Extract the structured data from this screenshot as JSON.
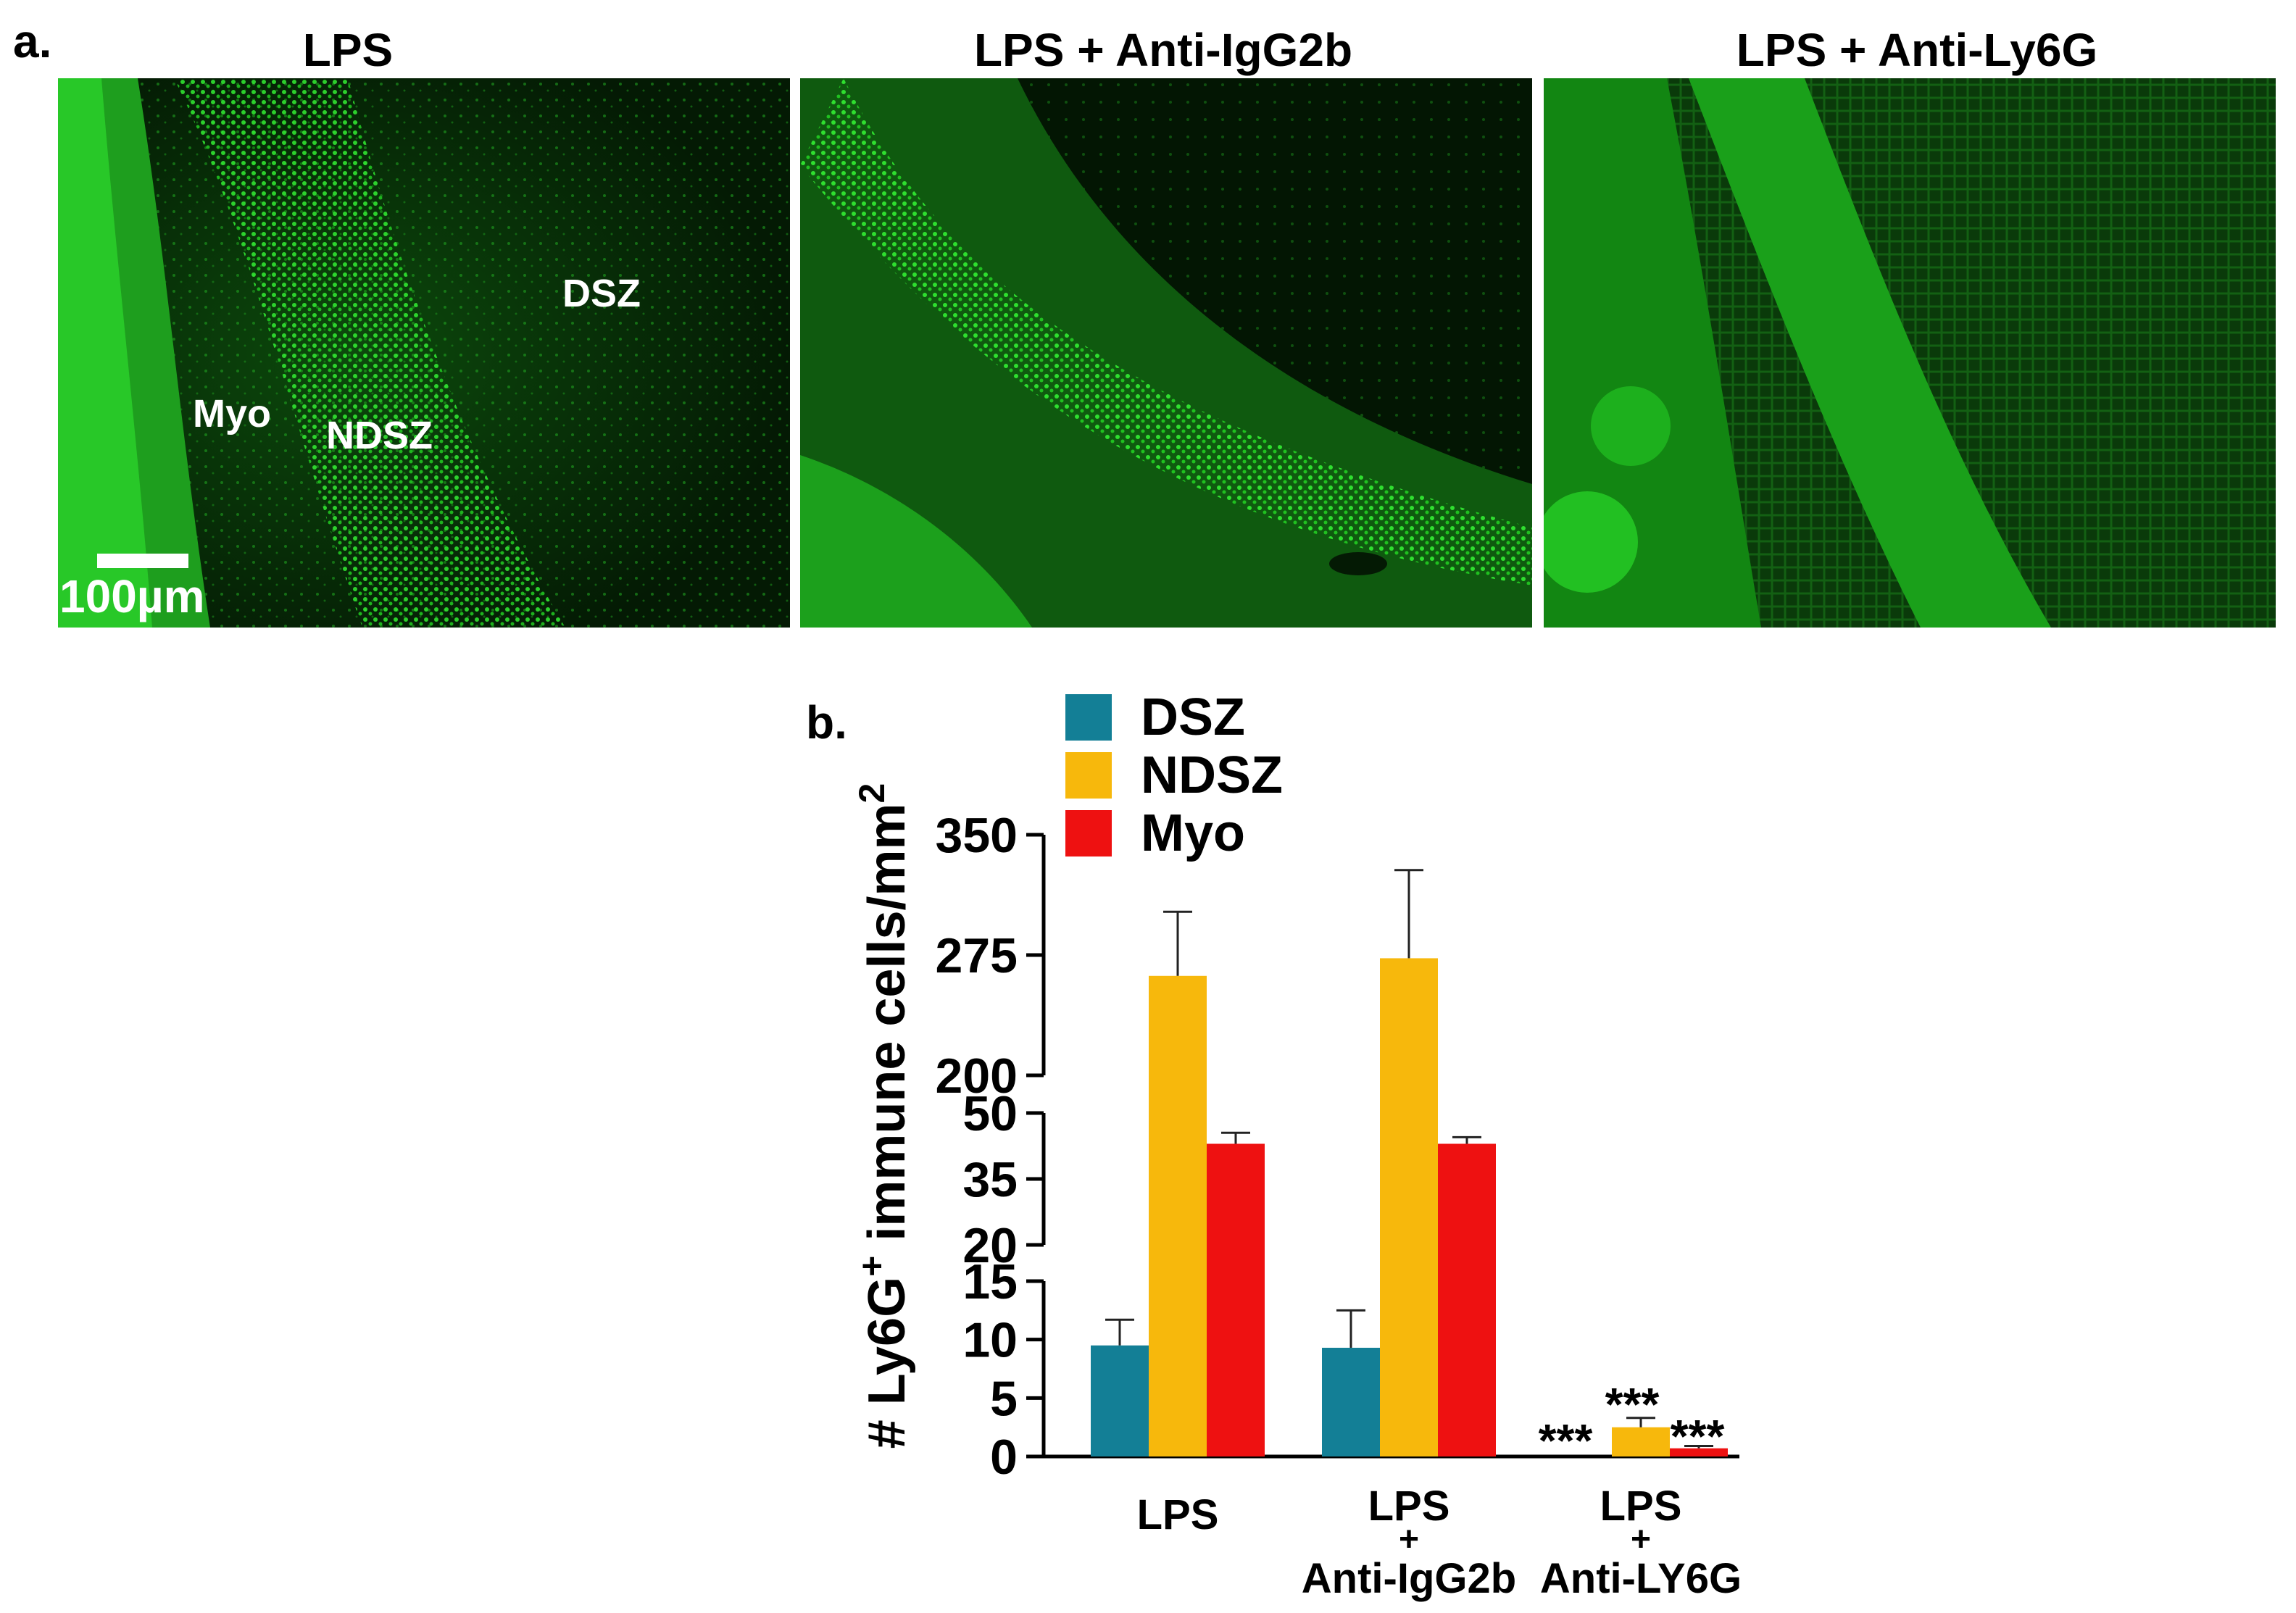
{
  "panel_a": {
    "letter": "a.",
    "titles": [
      "LPS",
      "LPS + Anti-IgG2b",
      "LPS + Anti-Ly6G"
    ],
    "region_labels": {
      "dsz": "DSZ",
      "myo": "Myo",
      "ndsz": "NDSZ"
    },
    "scale_bar": "100µm",
    "fluorescence_color": "#22dd22"
  },
  "panel_b": {
    "letter": "b."
  },
  "chart_data": {
    "type": "bar",
    "ylabel": "# Ly6G+ immune cells/mm2",
    "categories": [
      "LPS",
      "LPS + Anti-IgG2b",
      "LPS + Anti-LY6G"
    ],
    "category_label_lines": [
      [
        "LPS"
      ],
      [
        "LPS",
        "+",
        "Anti-IgG2b"
      ],
      [
        "LPS",
        "+",
        "Anti-LY6G"
      ]
    ],
    "series": [
      {
        "name": "DSZ",
        "color": "#137f96",
        "values": [
          9.5,
          9.3,
          0
        ],
        "errors": [
          2.2,
          3.2,
          0
        ]
      },
      {
        "name": "NDSZ",
        "color": "#f7b80c",
        "values": [
          262,
          273,
          2.5
        ],
        "errors": [
          40,
          55,
          0.8
        ]
      },
      {
        "name": "Myo",
        "color": "#ee1111",
        "values": [
          43,
          43,
          0.7
        ],
        "errors": [
          2.5,
          1.5,
          0.2
        ]
      }
    ],
    "y_axis_segments": [
      {
        "range": [
          0,
          15
        ],
        "ticks": [
          0,
          5,
          10,
          15
        ]
      },
      {
        "range": [
          20,
          50
        ],
        "ticks": [
          20,
          35,
          50
        ]
      },
      {
        "range": [
          200,
          350
        ],
        "ticks": [
          200,
          275,
          350
        ]
      }
    ],
    "significance": [
      {
        "category": 2,
        "series": 0,
        "label": "***"
      },
      {
        "category": 2,
        "series": 1,
        "label": "***"
      },
      {
        "category": 2,
        "series": 2,
        "label": "***"
      }
    ],
    "legend_position": "top-left"
  }
}
